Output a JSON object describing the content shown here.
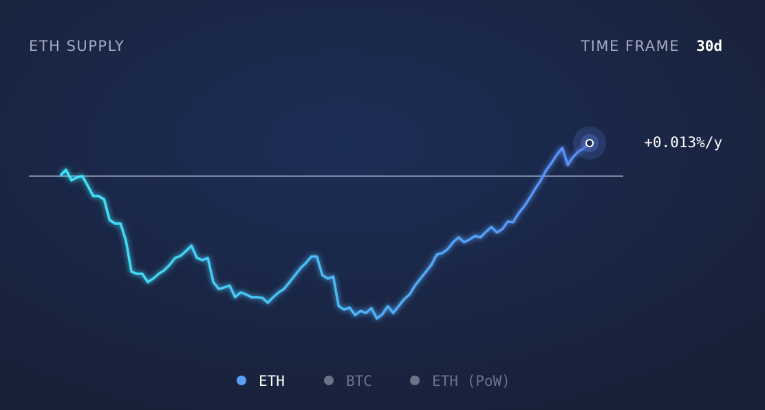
{
  "chart_data": {
    "type": "line",
    "title": "ETH SUPPLY",
    "time_frame_label": "TIME FRAME",
    "time_frame": "30d",
    "rate_label": "+0.013%/y",
    "baseline": 0,
    "ylim": [
      -224,
      76
    ],
    "series": [
      {
        "name": "ETH",
        "color": "#5b9cf6",
        "line_colors": [
          "#3ee6f7",
          "#5b8df7"
        ],
        "values": [
          1,
          9,
          -6,
          -2,
          0,
          -14,
          -29,
          -29,
          -34,
          -64,
          -69,
          -69,
          -94,
          -139,
          -142,
          -142,
          -154,
          -149,
          -142,
          -137,
          -129,
          -119,
          -116,
          -109,
          -101,
          -119,
          -122,
          -119,
          -154,
          -164,
          -162,
          -159,
          -176,
          -169,
          -172,
          -176,
          -176,
          -177,
          -184,
          -176,
          -169,
          -164,
          -154,
          -144,
          -134,
          -126,
          -117,
          -117,
          -144,
          -149,
          -146,
          -189,
          -194,
          -191,
          -202,
          -196,
          -199,
          -192,
          -207,
          -201,
          -189,
          -199,
          -189,
          -179,
          -172,
          -159,
          -149,
          -139,
          -129,
          -114,
          -112,
          -106,
          -96,
          -89,
          -96,
          -92,
          -87,
          -89,
          -81,
          -74,
          -82,
          -77,
          -66,
          -67,
          -54,
          -44,
          -32,
          -19,
          -7,
          8,
          19,
          31,
          41,
          16,
          28,
          36,
          41,
          48
        ]
      },
      {
        "name": "BTC",
        "color": "#6b7389",
        "values": []
      },
      {
        "name": "ETH (PoW)",
        "color": "#6b7389",
        "values": []
      }
    ]
  }
}
